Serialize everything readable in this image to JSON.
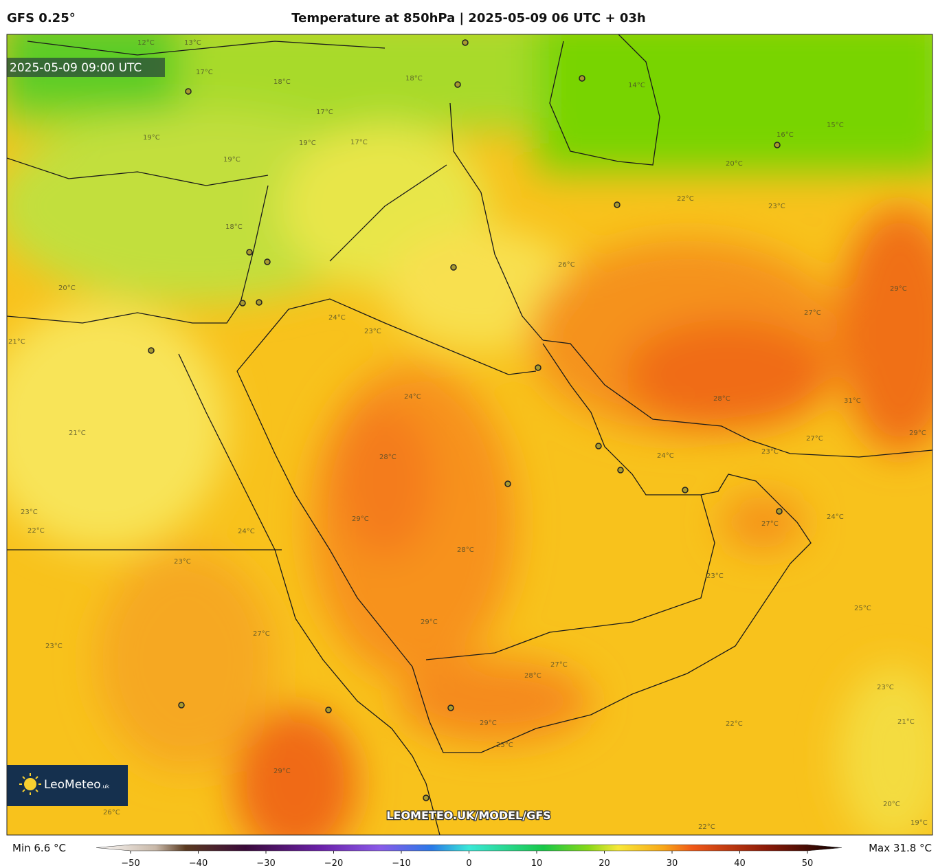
{
  "header": {
    "model": "GFS 0.25°",
    "title": "Temperature at 850hPa | 2025-05-09 06 UTC + 03h"
  },
  "map": {
    "valid_time": "2025-05-09 09:00 UTC",
    "watermark": "LEOMETEO.UK/MODEL/GFS",
    "contour_labels": [
      "12°C",
      "13°C",
      "17°C",
      "18°C",
      "18°C",
      "17°C",
      "19°C",
      "19°C",
      "17°C",
      "19°C",
      "14°C",
      "16°C",
      "15°C",
      "20°C",
      "22°C",
      "23°C",
      "18°C",
      "20°C",
      "24°C",
      "23°C",
      "21°C",
      "26°C",
      "27°C",
      "29°C",
      "24°C",
      "28°C",
      "31°C",
      "29°C",
      "27°C",
      "23°C",
      "24°C",
      "21°C",
      "28°C",
      "29°C",
      "27°C",
      "24°C",
      "23°C",
      "22°C",
      "24°C",
      "23°C",
      "28°C",
      "23°C",
      "25°C",
      "27°C",
      "23°C",
      "29°C",
      "27°C",
      "28°C",
      "23°C",
      "29°C",
      "22°C",
      "21°C",
      "29°C",
      "25°C",
      "26°C",
      "20°C",
      "19°C",
      "22°C"
    ]
  },
  "logo": {
    "name": "LeoMeteo",
    "suffix": ".uk"
  },
  "colorbar": {
    "min_label": "Min 6.6 °C",
    "max_label": "Max 31.8 °C",
    "lim": [
      -50,
      50
    ],
    "ticks": [
      {
        "value": -50,
        "label": "−50"
      },
      {
        "value": -40,
        "label": "−40"
      },
      {
        "value": -30,
        "label": "−30"
      },
      {
        "value": -20,
        "label": "−20"
      },
      {
        "value": -10,
        "label": "−10"
      },
      0,
      10,
      20,
      30,
      40,
      50
    ]
  }
}
